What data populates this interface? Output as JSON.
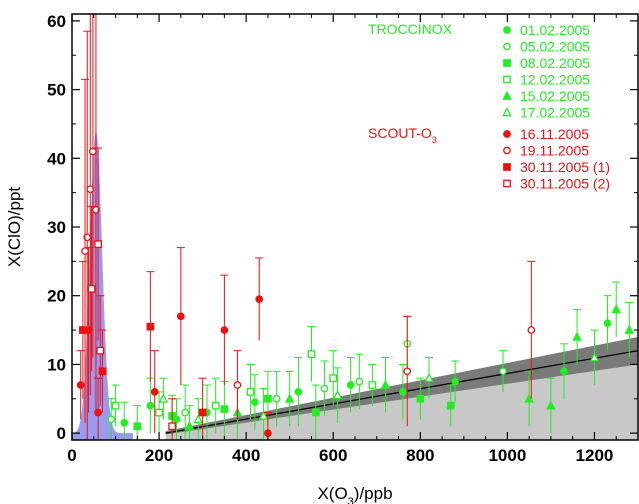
{
  "chart_data": {
    "type": "scatter",
    "xlabel": "X(O3)/ppb",
    "xlabel_main": "X(O",
    "xlabel_sub": "3",
    "xlabel_end": ")/ppb",
    "ylabel": "X(ClO)/ppt",
    "xlim": [
      0,
      1300
    ],
    "ylim": [
      -1,
      61
    ],
    "xticks": [
      0,
      200,
      400,
      600,
      800,
      1000,
      1200
    ],
    "yticks": [
      0,
      10,
      20,
      30,
      40,
      50,
      60
    ],
    "groups": [
      {
        "label_main": "TROCCINOX",
        "label_sub": "",
        "color": "#22ee22"
      },
      {
        "label_main": "SCOUT-O",
        "label_sub": "3",
        "color": "#ee1111"
      }
    ],
    "colors": {
      "troccinox": "#22ee22",
      "scout": "#ee1111",
      "fit_line": "#000000",
      "dark_band": "#7a7a7a",
      "light_band": "#c8c8c8",
      "blue_peak": "#8888ee"
    },
    "series": [
      {
        "name": "01.02.2005",
        "group": "troccinox",
        "marker": "filled-circle",
        "points": [
          {
            "x": 120,
            "y": 1.5,
            "err": 3
          },
          {
            "x": 180,
            "y": 4,
            "err": 4
          },
          {
            "x": 240,
            "y": 2,
            "err": 3
          },
          {
            "x": 310,
            "y": 3,
            "err": 4
          },
          {
            "x": 420,
            "y": 4.5,
            "err": 4
          },
          {
            "x": 520,
            "y": 6,
            "err": 5
          },
          {
            "x": 640,
            "y": 7,
            "err": 4
          },
          {
            "x": 760,
            "y": 6,
            "err": 4
          },
          {
            "x": 880,
            "y": 7.5,
            "err": 3
          },
          {
            "x": 1130,
            "y": 9,
            "err": 4
          },
          {
            "x": 1230,
            "y": 16,
            "err": 4
          }
        ]
      },
      {
        "name": "05.02.2005",
        "group": "troccinox",
        "marker": "open-circle",
        "points": [
          {
            "x": 90,
            "y": 2,
            "err": 3
          },
          {
            "x": 260,
            "y": 3,
            "err": 4
          },
          {
            "x": 470,
            "y": 5,
            "err": 4
          },
          {
            "x": 580,
            "y": 6.5,
            "err": 4
          },
          {
            "x": 660,
            "y": 7.5,
            "err": 4
          },
          {
            "x": 770,
            "y": 13,
            "err": 4
          },
          {
            "x": 990,
            "y": 9,
            "err": 3
          }
        ]
      },
      {
        "name": "08.02.2005",
        "group": "troccinox",
        "marker": "filled-square",
        "points": [
          {
            "x": 150,
            "y": 1,
            "err": 3
          },
          {
            "x": 230,
            "y": 2.5,
            "err": 3
          },
          {
            "x": 350,
            "y": 3.5,
            "err": 4
          },
          {
            "x": 450,
            "y": 5,
            "err": 4
          },
          {
            "x": 560,
            "y": 3,
            "err": 4
          },
          {
            "x": 800,
            "y": 5,
            "err": 3
          },
          {
            "x": 870,
            "y": 4,
            "err": 3
          }
        ]
      },
      {
        "name": "12.02.2005",
        "group": "troccinox",
        "marker": "open-square",
        "points": [
          {
            "x": 100,
            "y": 4,
            "err": 3
          },
          {
            "x": 200,
            "y": 3,
            "err": 3
          },
          {
            "x": 330,
            "y": 4,
            "err": 4
          },
          {
            "x": 410,
            "y": 6,
            "err": 4
          },
          {
            "x": 550,
            "y": 11.5,
            "err": 4
          },
          {
            "x": 600,
            "y": 8,
            "err": 4
          },
          {
            "x": 690,
            "y": 7,
            "err": 3
          }
        ]
      },
      {
        "name": "15.02.2005",
        "group": "troccinox",
        "marker": "filled-triangle",
        "points": [
          {
            "x": 270,
            "y": 1,
            "err": 3
          },
          {
            "x": 380,
            "y": 3,
            "err": 4
          },
          {
            "x": 500,
            "y": 5,
            "err": 4
          },
          {
            "x": 720,
            "y": 7,
            "err": 4
          },
          {
            "x": 1050,
            "y": 5,
            "err": 4
          },
          {
            "x": 1100,
            "y": 4,
            "err": 4
          },
          {
            "x": 1160,
            "y": 14,
            "err": 4
          },
          {
            "x": 1250,
            "y": 18,
            "err": 4
          },
          {
            "x": 1280,
            "y": 15,
            "err": 4
          }
        ]
      },
      {
        "name": "17.02.2005",
        "group": "troccinox",
        "marker": "open-triangle",
        "points": [
          {
            "x": 210,
            "y": 5,
            "err": 3
          },
          {
            "x": 290,
            "y": 2,
            "err": 3
          },
          {
            "x": 440,
            "y": 2.5,
            "err": 4
          },
          {
            "x": 610,
            "y": 5.5,
            "err": 4
          },
          {
            "x": 820,
            "y": 8,
            "err": 3
          },
          {
            "x": 1200,
            "y": 11,
            "err": 4
          }
        ]
      },
      {
        "name": "16.11.2005",
        "group": "scout",
        "marker": "filled-circle",
        "points": [
          {
            "x": 20,
            "y": 7,
            "err": 5
          },
          {
            "x": 38,
            "y": 15,
            "err": 12
          },
          {
            "x": 60,
            "y": 3,
            "err": 5
          },
          {
            "x": 190,
            "y": 6,
            "err": 6
          },
          {
            "x": 250,
            "y": 17,
            "err": 10
          },
          {
            "x": 350,
            "y": 15,
            "err": 8
          },
          {
            "x": 430,
            "y": 19.5,
            "err": 6
          },
          {
            "x": 450,
            "y": 0,
            "err": 3
          }
        ]
      },
      {
        "name": "19.11.2005",
        "group": "scout",
        "marker": "open-circle",
        "points": [
          {
            "x": 35,
            "y": 28.5,
            "err": 30
          },
          {
            "x": 42,
            "y": 35.5,
            "err": 30
          },
          {
            "x": 48,
            "y": 41,
            "err": 30
          },
          {
            "x": 55,
            "y": 32.5,
            "err": 30
          },
          {
            "x": 30,
            "y": 26.5,
            "err": 25
          },
          {
            "x": 380,
            "y": 7,
            "err": 5
          },
          {
            "x": 770,
            "y": 9,
            "err": 8
          },
          {
            "x": 1055,
            "y": 15,
            "err": 10
          }
        ]
      },
      {
        "name": "30.11.2005 (1)",
        "group": "scout",
        "marker": "filled-square",
        "points": [
          {
            "x": 25,
            "y": 15,
            "err": 10
          },
          {
            "x": 70,
            "y": 9,
            "err": 6
          },
          {
            "x": 180,
            "y": 15.5,
            "err": 8
          },
          {
            "x": 300,
            "y": 3,
            "err": 5
          }
        ]
      },
      {
        "name": "30.11.2005 (2)",
        "group": "scout",
        "marker": "open-square",
        "points": [
          {
            "x": 45,
            "y": 21,
            "err": 12
          },
          {
            "x": 60,
            "y": 27.5,
            "err": 14
          },
          {
            "x": 65,
            "y": 12,
            "err": 8
          },
          {
            "x": 230,
            "y": 1,
            "err": 4
          }
        ]
      }
    ],
    "fit_line": {
      "x": [
        215,
        1300
      ],
      "y": [
        0,
        12
      ]
    },
    "dark_band": {
      "x": [
        215,
        1300
      ],
      "y_low": [
        -0.2,
        10
      ],
      "y_high": [
        0.3,
        14
      ]
    },
    "light_band": {
      "x": [
        215,
        1300
      ],
      "y_low": [
        -1,
        -1
      ],
      "y_high": [
        0.3,
        10
      ]
    },
    "blue_peak": {
      "center": 55,
      "width": 20,
      "height": 44
    }
  }
}
